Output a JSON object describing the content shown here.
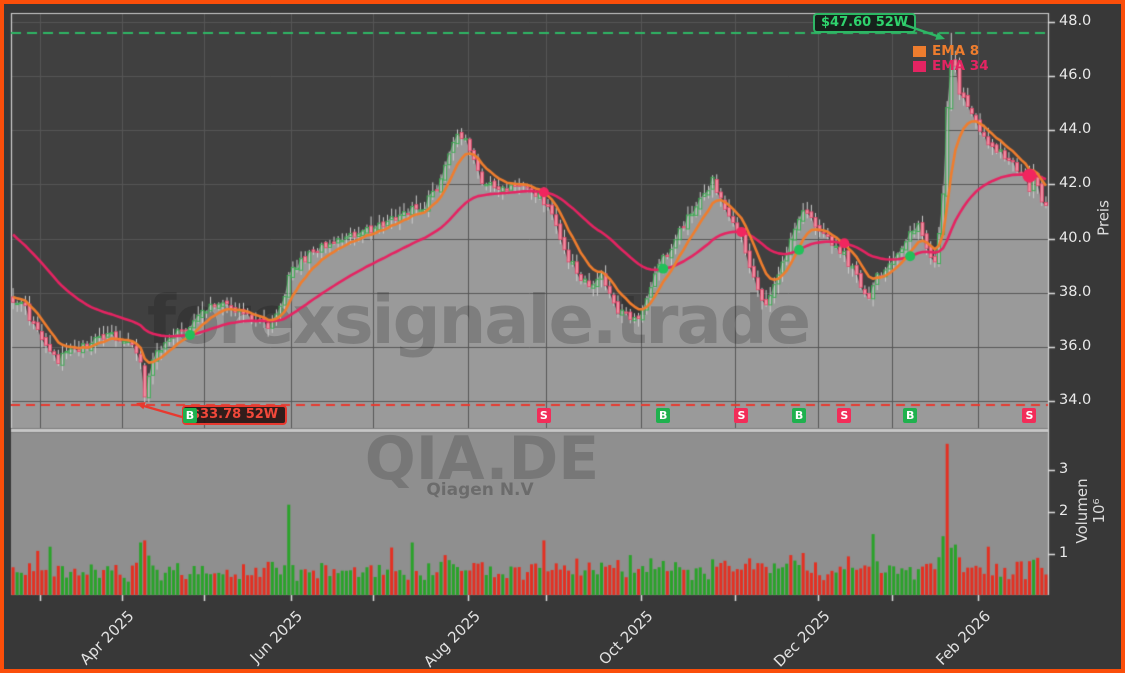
{
  "watermarks": {
    "brand": "forexsignale.trade",
    "symbol": "QIA.DE",
    "company": "Qiagen N.V"
  },
  "legend": {
    "items": [
      {
        "label": "EMA 8",
        "color": "#ee7d2e"
      },
      {
        "label": "EMA 34",
        "color": "#e42462"
      }
    ]
  },
  "annotations": {
    "high_label": "$47.60 52W",
    "low_label": "$33.78 52W",
    "high_color": "#2eb765",
    "low_color": "#e8392f"
  },
  "frame": {
    "border_color": "#fb4e0a",
    "background": "#383838",
    "panel_background": "#404040",
    "fill_gray": "#9a9a9a",
    "volume_panel_background": "#8f8f8f",
    "grid_color": "#565656"
  },
  "axes": {
    "price": {
      "title": "Preis",
      "tick_labels": [
        "48.0",
        "46.0",
        "44.0",
        "42.0",
        "40.0",
        "38.0",
        "36.0",
        "34.0"
      ],
      "tick_values": [
        48,
        46,
        44,
        42,
        40,
        38,
        36,
        34
      ]
    },
    "volume": {
      "title": "Volumen",
      "scale_label": "10⁶",
      "tick_labels": [
        "3",
        "2",
        "1"
      ],
      "tick_values": [
        3,
        2,
        1
      ]
    },
    "x": {
      "days_total": 252,
      "major": [
        {
          "label": "Apr 2025",
          "day": 27
        },
        {
          "label": "Jun 2025",
          "day": 68
        },
        {
          "label": "Aug 2025",
          "day": 111
        },
        {
          "label": "Oct 2025",
          "day": 153
        },
        {
          "label": "Dec 2025",
          "day": 196
        },
        {
          "label": "Feb 2026",
          "day": 235
        }
      ],
      "minor_days": [
        7,
        47,
        88,
        130,
        176,
        214
      ]
    }
  },
  "chart_data": {
    "type": "candlestick",
    "symbol": "QIA.DE",
    "levels": {
      "high_52w": 47.6,
      "low_52w": 33.78,
      "high_day": 228,
      "low_day": 32
    },
    "open_seed": 37.9,
    "close_anchors": [
      [
        0,
        37.8
      ],
      [
        3,
        37.4
      ],
      [
        6,
        36.5
      ],
      [
        8,
        36.1
      ],
      [
        11,
        35.5
      ],
      [
        15,
        35.9
      ],
      [
        20,
        36.2
      ],
      [
        25,
        36.4
      ],
      [
        29,
        36.1
      ],
      [
        31,
        35.4
      ],
      [
        32,
        34.15
      ],
      [
        33,
        35.0
      ],
      [
        34,
        35.5
      ],
      [
        38,
        36.3
      ],
      [
        43,
        36.8
      ],
      [
        48,
        37.6
      ],
      [
        53,
        37.4
      ],
      [
        57,
        37.2
      ],
      [
        60,
        37.0
      ],
      [
        62,
        36.8
      ],
      [
        64,
        37.2
      ],
      [
        66,
        37.8
      ],
      [
        67,
        38.8
      ],
      [
        71,
        39.3
      ],
      [
        76,
        39.7
      ],
      [
        80,
        39.9
      ],
      [
        85,
        40.2
      ],
      [
        90,
        40.5
      ],
      [
        95,
        41.0
      ],
      [
        100,
        41.2
      ],
      [
        104,
        42.2
      ],
      [
        105,
        42.8
      ],
      [
        108,
        43.9
      ],
      [
        110,
        43.6
      ],
      [
        112,
        42.9
      ],
      [
        114,
        42.1
      ],
      [
        119,
        41.8
      ],
      [
        124,
        42.0
      ],
      [
        127,
        41.7
      ],
      [
        130,
        41.2
      ],
      [
        133,
        39.9
      ],
      [
        136,
        39.0
      ],
      [
        140,
        38.2
      ],
      [
        142,
        38.5
      ],
      [
        143,
        38.6
      ],
      [
        146,
        37.5
      ],
      [
        150,
        37.0
      ],
      [
        153,
        37.3
      ],
      [
        156,
        38.8
      ],
      [
        159,
        39.4
      ],
      [
        163,
        40.5
      ],
      [
        166,
        41.2
      ],
      [
        170,
        42.1
      ],
      [
        173,
        41.0
      ],
      [
        177,
        40.1
      ],
      [
        180,
        38.6
      ],
      [
        183,
        37.4
      ],
      [
        186,
        38.7
      ],
      [
        189,
        39.9
      ],
      [
        192,
        41.1
      ],
      [
        196,
        40.3
      ],
      [
        199,
        39.9
      ],
      [
        202,
        39.4
      ],
      [
        205,
        38.6
      ],
      [
        208,
        37.8
      ],
      [
        210,
        38.6
      ],
      [
        212,
        38.9
      ],
      [
        215,
        39.4
      ],
      [
        218,
        40.1
      ],
      [
        220,
        40.6
      ],
      [
        221,
        40.0
      ],
      [
        223,
        39.2
      ],
      [
        224,
        39.0
      ],
      [
        226,
        41.5
      ],
      [
        227,
        44.8
      ],
      [
        228,
        46.7
      ],
      [
        229,
        46.2
      ],
      [
        230,
        45.3
      ],
      [
        232,
        44.8
      ],
      [
        234,
        44.3
      ],
      [
        235,
        44.0
      ],
      [
        237,
        43.6
      ],
      [
        239,
        43.3
      ],
      [
        241,
        43.1
      ],
      [
        243,
        42.8
      ],
      [
        245,
        42.5
      ],
      [
        247,
        41.8
      ],
      [
        248,
        42.3
      ],
      [
        250,
        41.4
      ],
      [
        251,
        41.1
      ]
    ],
    "ema": [
      {
        "period": 8,
        "color": "#ee7d2e",
        "seed": 37.9
      },
      {
        "period": 34,
        "color": "#e42462",
        "seed": 40.3
      }
    ],
    "signals": [
      {
        "type": "B",
        "day": 43
      },
      {
        "type": "S",
        "day": 129
      },
      {
        "type": "B",
        "day": 158
      },
      {
        "type": "S",
        "day": 177
      },
      {
        "type": "B",
        "day": 191
      },
      {
        "type": "S",
        "day": 202
      },
      {
        "type": "B",
        "day": 218
      },
      {
        "type": "S",
        "day": 247,
        "dot": "large"
      }
    ],
    "signal_colors": {
      "B": "#1fb14e",
      "S": "#f22d59"
    },
    "volume_spikes": [
      [
        6,
        1.05,
        "down"
      ],
      [
        9,
        1.15,
        "up"
      ],
      [
        31,
        1.25,
        "up"
      ],
      [
        32,
        1.3,
        "down"
      ],
      [
        67,
        2.15,
        "up"
      ],
      [
        92,
        1.13,
        "down"
      ],
      [
        97,
        1.25,
        "up"
      ],
      [
        105,
        0.95,
        "down"
      ],
      [
        129,
        1.3,
        "down"
      ],
      [
        150,
        0.95,
        "up"
      ],
      [
        189,
        0.95,
        "down"
      ],
      [
        192,
        1.0,
        "down"
      ],
      [
        209,
        1.45,
        "up"
      ],
      [
        226,
        1.4,
        "up"
      ],
      [
        227,
        3.6,
        "down"
      ],
      [
        229,
        1.2,
        "up"
      ],
      [
        237,
        1.15,
        "down"
      ],
      [
        245,
        0.8,
        "down"
      ]
    ],
    "candle_colors": {
      "up_stroke": "#3fae55",
      "down_fill": "#f18fa3",
      "down_stroke": "#e4476b",
      "wick": "#cccccc"
    },
    "volume_colors": {
      "up": "#2aa22a",
      "down": "#e33022"
    },
    "line_colors": {
      "high_dashed": "#2eb765",
      "low_dashed": "#e8392f"
    }
  }
}
